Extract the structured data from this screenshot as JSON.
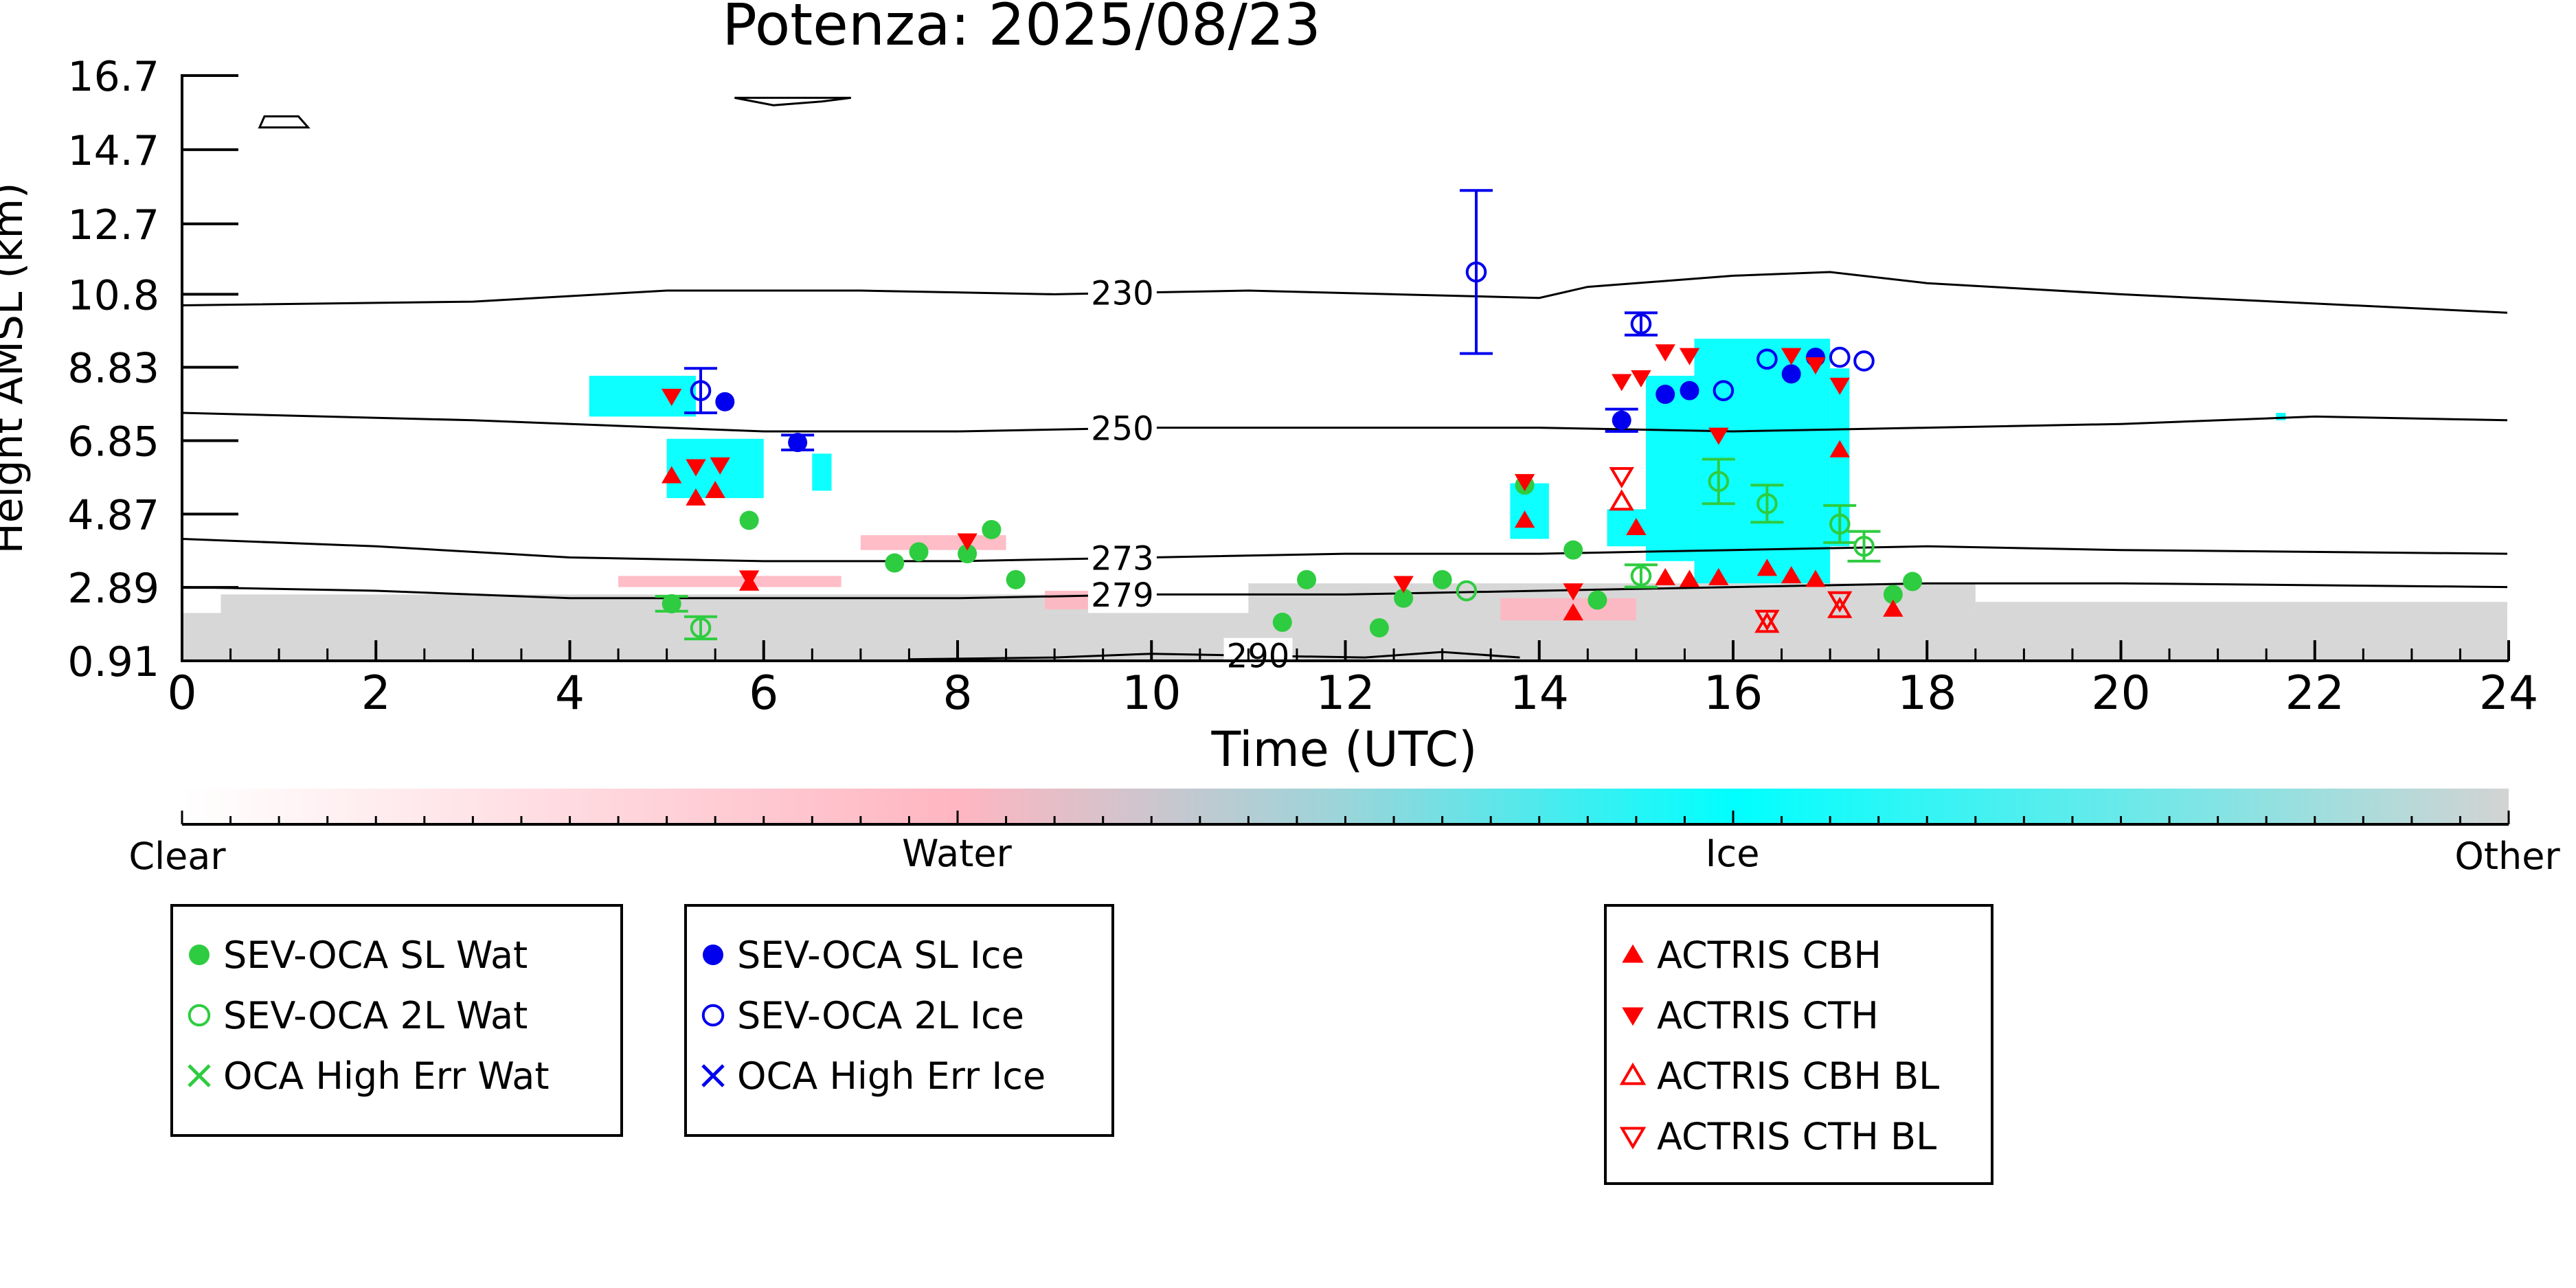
{
  "chart_data": {
    "type": "scatter",
    "title": "Potenza: 2025/08/23",
    "xlabel": "Time (UTC)",
    "ylabel": "Height AMSL (km)",
    "xlim": [
      0,
      24
    ],
    "ylim": [
      0.91,
      16.7
    ],
    "xticks": [
      "0",
      "2",
      "4",
      "6",
      "8",
      "10",
      "12",
      "14",
      "16",
      "18",
      "20",
      "22",
      "24"
    ],
    "yticks": [
      "0.91",
      "2.89",
      "4.87",
      "6.85",
      "8.83",
      "10.8",
      "12.7",
      "14.7",
      "16.7"
    ],
    "colorbar": {
      "labels": [
        "Clear",
        "Water",
        "Ice",
        "Other"
      ],
      "colors": {
        "clear": "#ffffff",
        "water": "#ffb6c1",
        "ice": "#00ffff",
        "other": "#d3d3d3"
      }
    },
    "isotherms": [
      {
        "label": "230",
        "label_x": 9.7,
        "points": [
          [
            0,
            10.5
          ],
          [
            3,
            10.6
          ],
          [
            5,
            10.9
          ],
          [
            7,
            10.9
          ],
          [
            9,
            10.8
          ],
          [
            11,
            10.9
          ],
          [
            12.5,
            10.8
          ],
          [
            14,
            10.7
          ],
          [
            14.5,
            11.0
          ],
          [
            16,
            11.3
          ],
          [
            17,
            11.4
          ],
          [
            18,
            11.1
          ],
          [
            20,
            10.8
          ],
          [
            24,
            10.3
          ]
        ]
      },
      {
        "label": "250",
        "label_x": 9.7,
        "points": [
          [
            0,
            7.6
          ],
          [
            3,
            7.4
          ],
          [
            6,
            7.1
          ],
          [
            8,
            7.1
          ],
          [
            10,
            7.2
          ],
          [
            12,
            7.2
          ],
          [
            14,
            7.2
          ],
          [
            16,
            7.1
          ],
          [
            18,
            7.2
          ],
          [
            20,
            7.3
          ],
          [
            22,
            7.5
          ],
          [
            24,
            7.4
          ]
        ]
      },
      {
        "label": "273",
        "label_x": 9.7,
        "points": [
          [
            0,
            4.2
          ],
          [
            2,
            4.0
          ],
          [
            4,
            3.7
          ],
          [
            6,
            3.6
          ],
          [
            8,
            3.6
          ],
          [
            10,
            3.7
          ],
          [
            12,
            3.8
          ],
          [
            14,
            3.8
          ],
          [
            16,
            3.9
          ],
          [
            18,
            4.0
          ],
          [
            20,
            3.9
          ],
          [
            24,
            3.8
          ]
        ]
      },
      {
        "label": "279",
        "label_x": 9.7,
        "points": [
          [
            0,
            2.9
          ],
          [
            2,
            2.8
          ],
          [
            4,
            2.6
          ],
          [
            6,
            2.6
          ],
          [
            8,
            2.6
          ],
          [
            10,
            2.7
          ],
          [
            12,
            2.7
          ],
          [
            14,
            2.8
          ],
          [
            16,
            2.9
          ],
          [
            18,
            3.0
          ],
          [
            20,
            3.0
          ],
          [
            24,
            2.9
          ]
        ]
      },
      {
        "label": "290",
        "label_x": 11.1,
        "points": [
          [
            7.5,
            0.95
          ],
          [
            9,
            1.0
          ],
          [
            10,
            1.1
          ],
          [
            11,
            1.05
          ],
          [
            12.2,
            1.0
          ],
          [
            13,
            1.15
          ],
          [
            13.8,
            1.0
          ]
        ]
      }
    ],
    "contours_closed": [
      {
        "points": [
          [
            0.85,
            15.6
          ],
          [
            1.2,
            15.6
          ],
          [
            1.3,
            15.3
          ],
          [
            0.8,
            15.3
          ]
        ]
      },
      {
        "points": [
          [
            5.7,
            16.1
          ],
          [
            6.1,
            15.9
          ],
          [
            6.6,
            16.0
          ],
          [
            6.9,
            16.1
          ],
          [
            6.5,
            16.1
          ]
        ]
      }
    ],
    "cloud_regions": [
      {
        "type": "other",
        "x0": 0.0,
        "x1": 24.0,
        "y0": 0.91,
        "y1": 2.2
      },
      {
        "type": "other",
        "x0": 0.4,
        "x1": 9.5,
        "y0": 2.2,
        "y1": 2.7
      },
      {
        "type": "other",
        "x0": 11.0,
        "x1": 18.5,
        "y0": 2.2,
        "y1": 3.0
      },
      {
        "type": "other",
        "x0": 18.5,
        "x1": 24.0,
        "y0": 2.2,
        "y1": 2.5
      },
      {
        "type": "water",
        "x0": 4.5,
        "x1": 6.8,
        "y0": 2.9,
        "y1": 3.2
      },
      {
        "type": "water",
        "x0": 7.0,
        "x1": 8.5,
        "y0": 3.9,
        "y1": 4.3
      },
      {
        "type": "water",
        "x0": 8.9,
        "x1": 9.5,
        "y0": 2.3,
        "y1": 2.8
      },
      {
        "type": "water",
        "x0": 13.6,
        "x1": 15.0,
        "y0": 2.0,
        "y1": 2.6
      },
      {
        "type": "ice",
        "x0": 4.2,
        "x1": 5.3,
        "y0": 7.5,
        "y1": 8.6
      },
      {
        "type": "ice",
        "x0": 5.0,
        "x1": 6.0,
        "y0": 5.3,
        "y1": 6.9
      },
      {
        "type": "ice",
        "x0": 6.5,
        "x1": 6.7,
        "y0": 5.5,
        "y1": 6.5
      },
      {
        "type": "ice",
        "x0": 13.7,
        "x1": 14.1,
        "y0": 4.2,
        "y1": 5.7
      },
      {
        "type": "ice",
        "x0": 14.7,
        "x1": 15.1,
        "y0": 4.0,
        "y1": 5.0
      },
      {
        "type": "ice",
        "x0": 15.1,
        "x1": 15.6,
        "y0": 3.6,
        "y1": 8.6
      },
      {
        "type": "ice",
        "x0": 15.6,
        "x1": 17.0,
        "y0": 3.0,
        "y1": 9.6
      },
      {
        "type": "ice",
        "x0": 17.0,
        "x1": 17.2,
        "y0": 4.0,
        "y1": 8.8
      },
      {
        "type": "ice",
        "x0": 21.6,
        "x1": 21.7,
        "y0": 7.4,
        "y1": 7.6
      }
    ],
    "series": [
      {
        "name": "SEV-OCA SL Wat",
        "color": "#2ecc40",
        "marker": "filled-circle",
        "points": [
          {
            "x": 5.05,
            "y": 2.45,
            "err": 0.2
          },
          {
            "x": 5.85,
            "y": 4.7
          },
          {
            "x": 7.35,
            "y": 3.55
          },
          {
            "x": 7.6,
            "y": 3.85
          },
          {
            "x": 8.1,
            "y": 3.8
          },
          {
            "x": 8.35,
            "y": 4.45
          },
          {
            "x": 8.6,
            "y": 3.1
          },
          {
            "x": 11.35,
            "y": 1.95
          },
          {
            "x": 11.6,
            "y": 3.1
          },
          {
            "x": 12.35,
            "y": 1.8
          },
          {
            "x": 12.6,
            "y": 2.6
          },
          {
            "x": 13.0,
            "y": 3.1
          },
          {
            "x": 13.85,
            "y": 5.65
          },
          {
            "x": 14.35,
            "y": 3.9
          },
          {
            "x": 14.6,
            "y": 2.55
          },
          {
            "x": 17.65,
            "y": 2.7
          },
          {
            "x": 17.85,
            "y": 3.05
          }
        ]
      },
      {
        "name": "SEV-OCA 2L Wat",
        "color": "#2ecc40",
        "marker": "open-circle",
        "points": [
          {
            "x": 5.35,
            "y": 1.8,
            "err": 0.3
          },
          {
            "x": 13.25,
            "y": 2.8
          },
          {
            "x": 15.05,
            "y": 3.2,
            "err": 0.3
          },
          {
            "x": 15.85,
            "y": 5.75,
            "err": 0.6
          },
          {
            "x": 16.35,
            "y": 5.15,
            "err": 0.5
          },
          {
            "x": 17.1,
            "y": 4.6,
            "err": 0.5
          },
          {
            "x": 17.35,
            "y": 4.0,
            "err": 0.4
          }
        ]
      },
      {
        "name": "OCA High Err Wat",
        "color": "#2ecc40",
        "marker": "x",
        "points": []
      },
      {
        "name": "SEV-OCA SL Ice",
        "color": "#0000ee",
        "marker": "filled-circle",
        "points": [
          {
            "x": 5.6,
            "y": 7.9
          },
          {
            "x": 6.35,
            "y": 6.8,
            "err": 0.2
          },
          {
            "x": 14.85,
            "y": 7.4,
            "err": 0.3
          },
          {
            "x": 15.3,
            "y": 8.1
          },
          {
            "x": 15.55,
            "y": 8.2
          },
          {
            "x": 16.6,
            "y": 8.65
          },
          {
            "x": 16.85,
            "y": 9.1
          }
        ]
      },
      {
        "name": "SEV-OCA 2L Ice",
        "color": "#0000ee",
        "marker": "open-circle",
        "points": [
          {
            "x": 5.35,
            "y": 8.2,
            "err": 0.6
          },
          {
            "x": 13.35,
            "y": 11.4,
            "err": 2.2
          },
          {
            "x": 15.05,
            "y": 10.0,
            "err": 0.3
          },
          {
            "x": 15.9,
            "y": 8.2
          },
          {
            "x": 16.35,
            "y": 9.05
          },
          {
            "x": 17.1,
            "y": 9.1
          },
          {
            "x": 17.35,
            "y": 9.0
          }
        ]
      },
      {
        "name": "OCA High Err Ice",
        "color": "#0000ee",
        "marker": "x",
        "points": []
      },
      {
        "name": "ACTRIS CBH",
        "color": "#ff0000",
        "marker": "filled-triangle-up",
        "points": [
          {
            "x": 5.05,
            "y": 5.9
          },
          {
            "x": 5.3,
            "y": 5.3
          },
          {
            "x": 5.5,
            "y": 5.5
          },
          {
            "x": 5.85,
            "y": 3.0
          },
          {
            "x": 13.85,
            "y": 4.7
          },
          {
            "x": 14.35,
            "y": 2.2
          },
          {
            "x": 15.0,
            "y": 4.5
          },
          {
            "x": 15.3,
            "y": 3.15
          },
          {
            "x": 15.55,
            "y": 3.1
          },
          {
            "x": 15.85,
            "y": 3.15
          },
          {
            "x": 16.35,
            "y": 3.4
          },
          {
            "x": 16.6,
            "y": 3.2
          },
          {
            "x": 16.85,
            "y": 3.1
          },
          {
            "x": 17.1,
            "y": 6.6
          },
          {
            "x": 17.65,
            "y": 2.3
          }
        ]
      },
      {
        "name": "ACTRIS CTH",
        "color": "#ff0000",
        "marker": "filled-triangle-down",
        "points": [
          {
            "x": 5.05,
            "y": 8.05
          },
          {
            "x": 5.3,
            "y": 6.15
          },
          {
            "x": 5.55,
            "y": 6.2
          },
          {
            "x": 5.85,
            "y": 3.15
          },
          {
            "x": 8.1,
            "y": 4.15
          },
          {
            "x": 12.6,
            "y": 3.0
          },
          {
            "x": 13.85,
            "y": 5.75
          },
          {
            "x": 14.35,
            "y": 2.8
          },
          {
            "x": 14.85,
            "y": 8.45
          },
          {
            "x": 15.05,
            "y": 8.55
          },
          {
            "x": 15.3,
            "y": 9.25
          },
          {
            "x": 15.55,
            "y": 9.15
          },
          {
            "x": 15.85,
            "y": 7.0
          },
          {
            "x": 16.6,
            "y": 9.15
          },
          {
            "x": 16.85,
            "y": 8.9
          },
          {
            "x": 17.1,
            "y": 8.35
          }
        ]
      },
      {
        "name": "ACTRIS CBH BL",
        "color": "#ff0000",
        "marker": "open-triangle-up",
        "points": [
          {
            "x": 14.85,
            "y": 5.2
          },
          {
            "x": 16.35,
            "y": 1.9
          },
          {
            "x": 17.1,
            "y": 2.3
          }
        ]
      },
      {
        "name": "ACTRIS CTH BL",
        "color": "#ff0000",
        "marker": "open-triangle-down",
        "points": [
          {
            "x": 14.85,
            "y": 5.9
          },
          {
            "x": 16.35,
            "y": 2.05
          },
          {
            "x": 17.1,
            "y": 2.55
          }
        ]
      }
    ],
    "legend_groups": [
      [
        "SEV-OCA SL Wat",
        "SEV-OCA 2L Wat",
        "OCA High Err Wat"
      ],
      [
        "SEV-OCA SL Ice",
        "SEV-OCA 2L Ice",
        "OCA High Err Ice"
      ],
      [
        "ACTRIS CBH",
        "ACTRIS CTH",
        "ACTRIS CBH BL",
        "ACTRIS CTH BL"
      ]
    ]
  }
}
